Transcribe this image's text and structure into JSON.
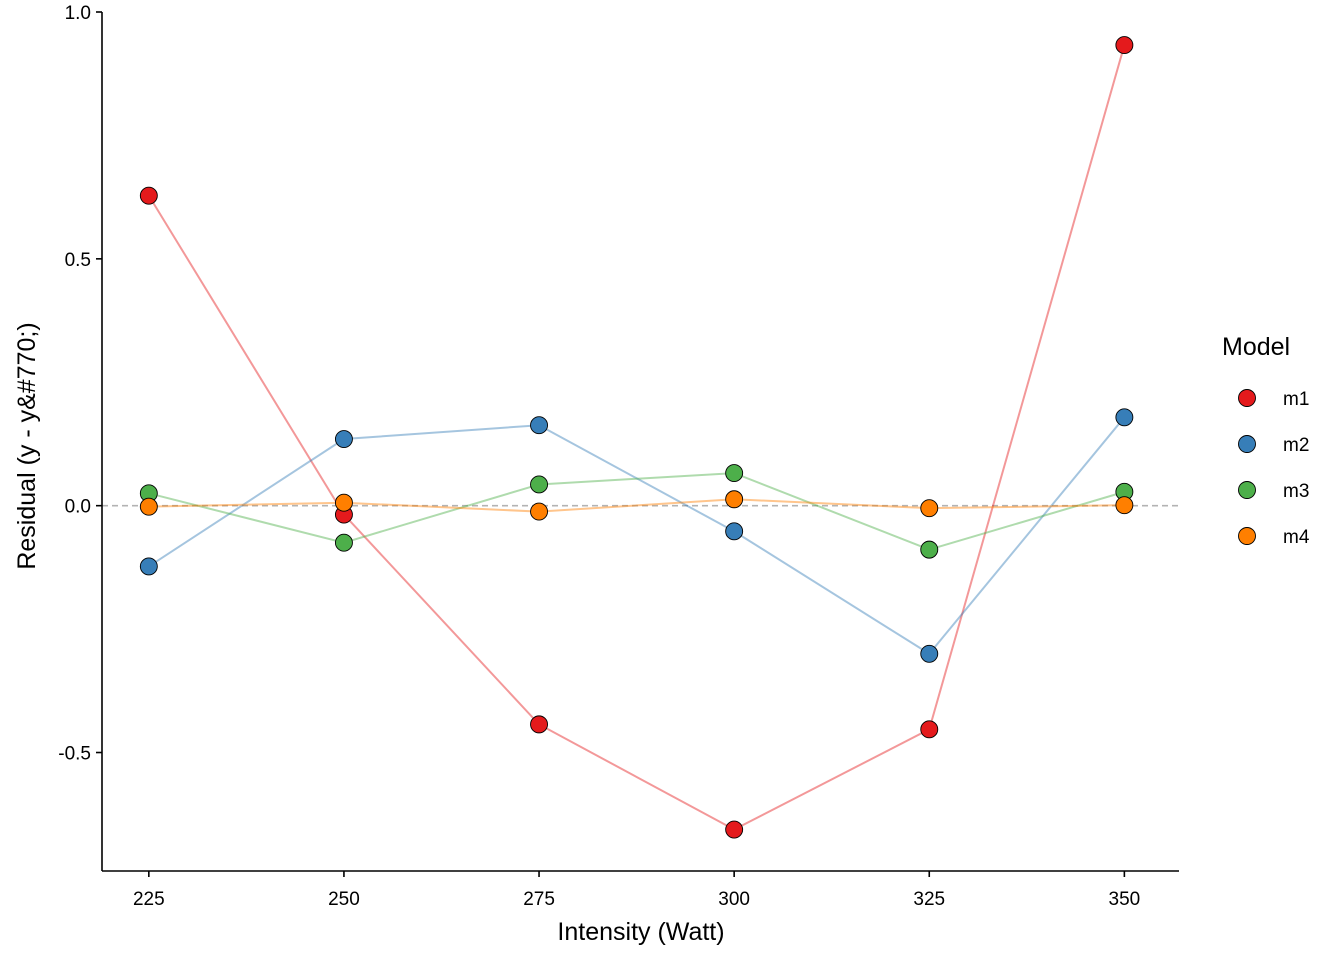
{
  "chart_data": {
    "type": "line",
    "title": "",
    "xlabel": "Intensity (Watt)",
    "ylabel": "Residual (y - y&#770;)",
    "x": [
      225,
      250,
      275,
      300,
      325,
      350
    ],
    "x_tick_labels": [
      "225",
      "250",
      "275",
      "300",
      "325",
      "350"
    ],
    "xlim": [
      219,
      357
    ],
    "y_ticks": [
      -0.5,
      0.0,
      0.5,
      1.0
    ],
    "y_tick_labels": [
      "-0.5",
      "0.0",
      "0.5",
      "1.0"
    ],
    "ylim": [
      -0.74,
      1.0
    ],
    "reference_line": {
      "y": 0,
      "style": "dashed",
      "color": "#b3b3b3"
    },
    "legend": {
      "title": "Model",
      "position": "right"
    },
    "series": [
      {
        "name": "m1",
        "color": "#E41A1C",
        "values": [
          0.628,
          -0.018,
          -0.443,
          -0.656,
          -0.453,
          0.933
        ]
      },
      {
        "name": "m2",
        "color": "#377EB8",
        "values": [
          -0.123,
          0.135,
          0.163,
          -0.052,
          -0.3,
          0.179
        ]
      },
      {
        "name": "m3",
        "color": "#4DAF4A",
        "values": [
          0.025,
          -0.075,
          0.043,
          0.066,
          -0.089,
          0.028
        ]
      },
      {
        "name": "m4",
        "color": "#FF7F00",
        "values": [
          -0.002,
          0.006,
          -0.012,
          0.013,
          -0.005,
          0.001
        ]
      }
    ]
  }
}
